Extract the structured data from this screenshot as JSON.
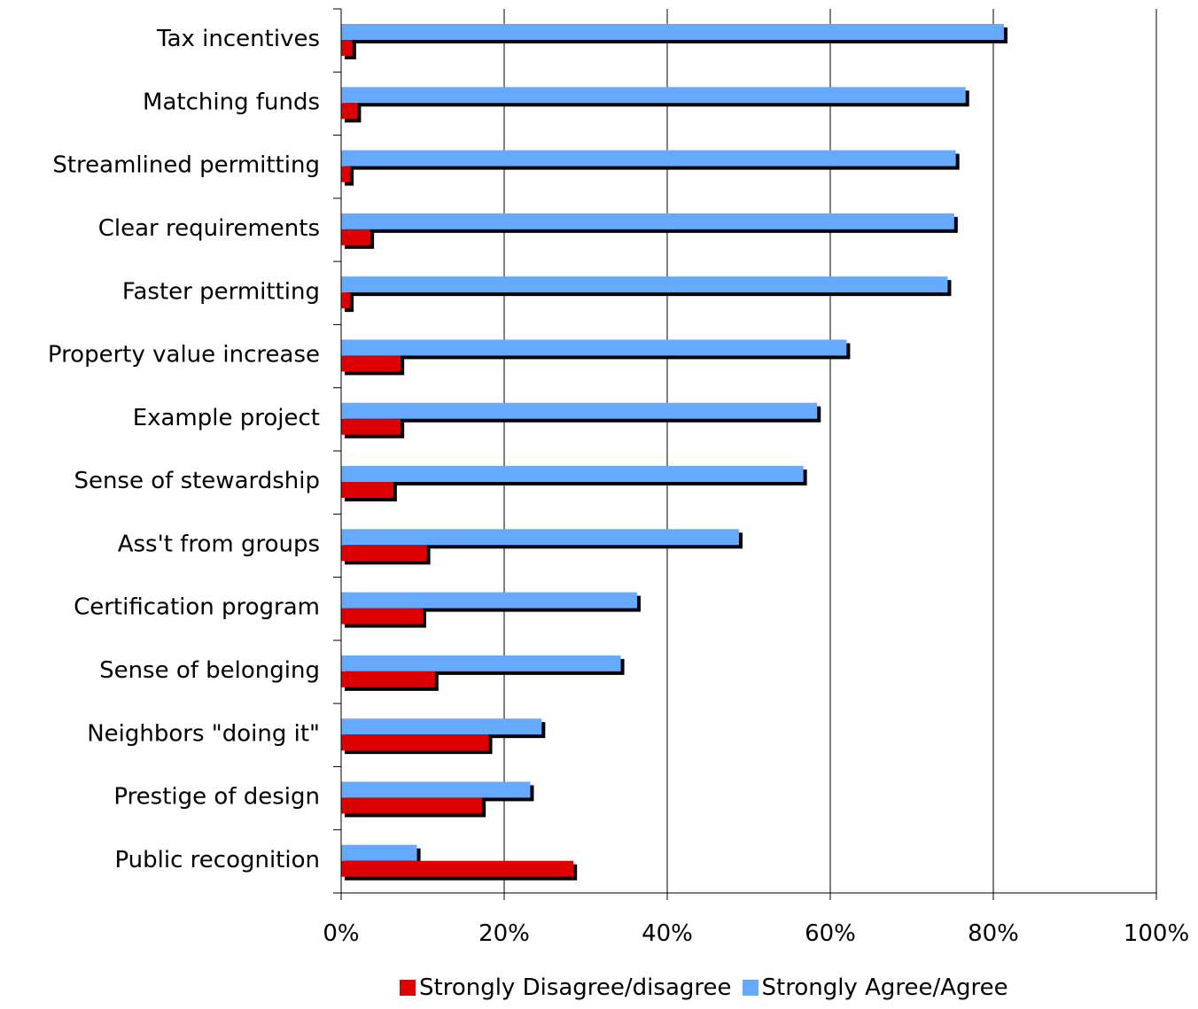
{
  "chart_data": {
    "type": "bar",
    "orientation": "horizontal",
    "categories": [
      "Tax incentives",
      "Matching funds",
      "Streamlined permitting",
      "Clear requirements",
      "Faster permitting",
      "Property value increase",
      "Example project",
      "Sense of stewardship",
      "Ass't from groups",
      "Certification program",
      "Sense of belonging",
      "Neighbors \"doing it\"",
      "Prestige of design",
      "Public recognition"
    ],
    "series": [
      {
        "name": "Strongly Agree/Agree",
        "color": "#66aaff",
        "values": [
          81.3,
          76.6,
          75.4,
          75.2,
          74.4,
          62.0,
          58.4,
          56.7,
          48.8,
          36.3,
          34.3,
          24.6,
          23.2,
          9.3
        ]
      },
      {
        "name": "Strongly Disagree/disagree",
        "color": "#dd0000",
        "values": [
          1.4,
          2.0,
          1.1,
          3.6,
          1.1,
          7.3,
          7.3,
          6.4,
          10.5,
          10.0,
          11.5,
          18.1,
          17.3,
          28.5
        ]
      }
    ],
    "xlim": [
      0,
      100
    ],
    "x_ticks": [
      "0%",
      "20%",
      "40%",
      "60%",
      "80%",
      "100%"
    ],
    "grid": "vertical major gridlines",
    "legend_position": "bottom",
    "legend": [
      "Strongly Disagree/disagree",
      "Strongly Agree/Agree"
    ],
    "title": "",
    "xlabel": "",
    "ylabel": ""
  }
}
